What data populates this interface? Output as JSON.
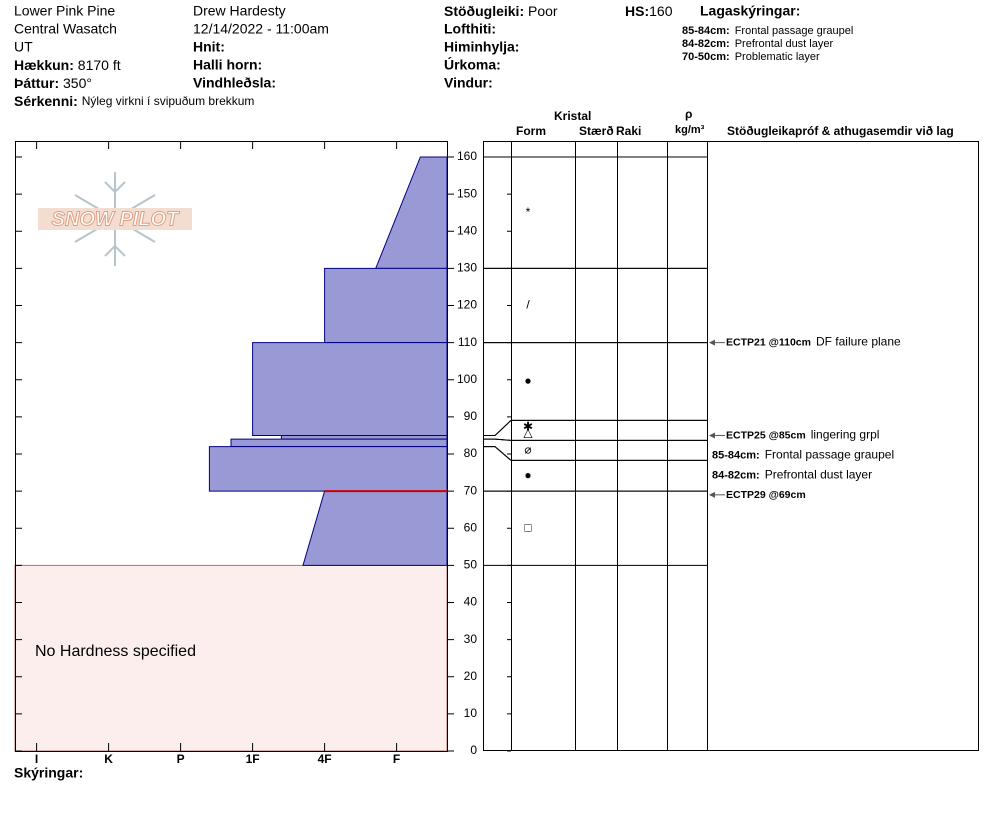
{
  "header": {
    "location": "Lower Pink Pine",
    "range": "Central Wasatch",
    "state": "UT",
    "elevation_label": "Hækkun:",
    "elevation": "8170 ft",
    "aspect_label": "Þáttur:",
    "aspect": "350°",
    "features_label": "Sérkenni:",
    "features": "Nýleg virkni í svipuðum brekkum",
    "observer": "Drew Hardesty",
    "datetime": "12/14/2022 - 11:00am",
    "coords_label": "Hnit:",
    "slope_label": "Halli horn:",
    "wind_loading_label": "Vindhleðsla:",
    "stability_label": "Stöðugleiki:",
    "stability": "Poor",
    "air_temp_label": "Lofthiti:",
    "sky_label": "Himinhylja:",
    "precip_label": "Úrkoma:",
    "wind_label": "Vindur:",
    "hs_label": "HS:",
    "hs": 160,
    "legend_title": "Lagaskýringar:",
    "legend": [
      {
        "range": "85-84cm:",
        "text": "Frontal passage graupel"
      },
      {
        "range": "84-82cm:",
        "text": "Prefrontal dust layer"
      },
      {
        "range": "70-50cm:",
        "text": "Problematic layer"
      }
    ]
  },
  "logo": "SNOW PILOT",
  "columns": {
    "crystal": "Kristal",
    "form": "Form",
    "size": "Stærð",
    "moisture": "Raki",
    "density_symbol": "ρ",
    "density_unit": "kg/m³",
    "tests": "Stöðugleikapróf & athugasemdir við lag"
  },
  "footer": "Skýringar:",
  "chart_data": {
    "type": "snow-profile",
    "ylim": [
      0,
      160
    ],
    "yticks": [
      0,
      10,
      20,
      30,
      40,
      50,
      60,
      70,
      80,
      90,
      100,
      110,
      120,
      130,
      140,
      150,
      160
    ],
    "xlim": [
      6.3,
      0.3
    ],
    "xticks": [
      {
        "value": 6,
        "label": "I"
      },
      {
        "value": 5,
        "label": "K"
      },
      {
        "value": 4,
        "label": "P"
      },
      {
        "value": 3,
        "label": "1F"
      },
      {
        "value": 2,
        "label": "4F"
      },
      {
        "value": 1,
        "label": "F"
      }
    ],
    "color": "#9999d6",
    "stroke": "#000080",
    "layers": [
      {
        "top": 160,
        "bottom": 130,
        "hardness_top": 0.67,
        "hardness_bottom": 1.29,
        "form": [
          "*"
        ]
      },
      {
        "top": 130,
        "bottom": 110,
        "hardness": 2,
        "form": [
          "/"
        ]
      },
      {
        "top": 110,
        "bottom": 85,
        "hardness": 3,
        "form": [
          "●"
        ]
      },
      {
        "top": 85,
        "bottom": 84,
        "hardness": 2.6,
        "form": [
          "✱",
          "△"
        ]
      },
      {
        "top": 84,
        "bottom": 82,
        "hardness": 3.3,
        "form": [
          "⌀"
        ]
      },
      {
        "top": 82,
        "bottom": 70,
        "hardness": 3.6,
        "form": [
          "●"
        ]
      },
      {
        "top": 70,
        "bottom": 50,
        "hardness_top": 2,
        "hardness_bottom": 2.3,
        "form": [
          "□"
        ]
      }
    ],
    "critical_depth": 70,
    "critical_color": "#cc0000",
    "no_hardness": {
      "top": 50,
      "bottom": 0,
      "label": "No Hardness specified",
      "color": "#fdeeee"
    },
    "tests": [
      {
        "depth": 110,
        "label": "ECTP21 @110cm",
        "comment": "DF failure plane"
      },
      {
        "depth": 85,
        "label": "ECTP25 @85cm",
        "comment": "lingering grpl"
      },
      {
        "depth": 69,
        "label": "ECTP29 @69cm"
      }
    ],
    "comments": [
      {
        "range": "85-84cm:",
        "text": "Frontal passage graupel"
      },
      {
        "range": "84-82cm:",
        "text": "Prefrontal dust layer"
      }
    ]
  }
}
